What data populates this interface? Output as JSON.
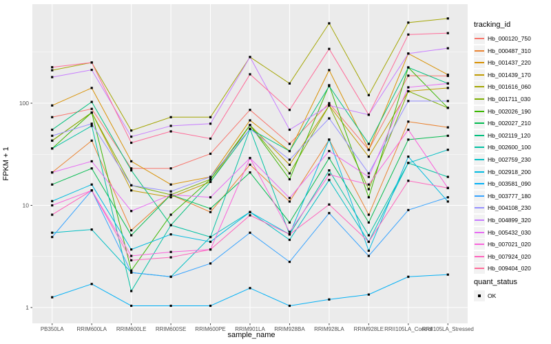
{
  "chart_data": {
    "type": "line",
    "title": "",
    "xlabel": "sample_name",
    "ylabel": "FPKM + 1",
    "y_scale": "log10",
    "y_ticks": [
      1,
      10,
      100
    ],
    "y_minor_ticks": [
      3.162,
      31.62,
      316.2
    ],
    "ylim": [
      0.7,
      930
    ],
    "grid": true,
    "panel_bg": "#EBEBEB",
    "grid_color": "#FFFFFF",
    "tick_color": "#333333",
    "point_color": "#000000",
    "point_shape": "square",
    "legend": {
      "title": "tracking_id",
      "position": "right"
    },
    "legend2": {
      "title": "quant_status",
      "items": [
        {
          "label": "OK",
          "marker": "black-square"
        }
      ]
    },
    "categories": [
      "PB350LA",
      "RRIM600LA",
      "RRIM600LE",
      "RRIM600SE",
      "RRIM600PE",
      "RRIM901LA",
      "RRIM928BA",
      "RRIM928LA",
      "RRIM928LE",
      "RRII105LA_Control",
      "RRII105LA_Stressed"
    ],
    "series": [
      {
        "name": "Hb_000120_750",
        "color": "#F8766D",
        "values": [
          73,
          88,
          23,
          23,
          32,
          86,
          40,
          100,
          35,
          186,
          185
        ]
      },
      {
        "name": "Hb_000487_310",
        "color": "#EA8331",
        "values": [
          21,
          43,
          5.7,
          12.7,
          8.6,
          25,
          10.9,
          44,
          8.1,
          66,
          58
        ]
      },
      {
        "name": "Hb_001437_220",
        "color": "#D89000",
        "values": [
          95,
          141,
          27,
          16,
          19,
          68,
          34,
          211,
          35,
          306,
          190
        ]
      },
      {
        "name": "Hb_001439_170",
        "color": "#C09B00",
        "values": [
          43,
          81,
          14,
          12,
          17,
          61,
          25,
          95,
          30,
          131,
          141
        ]
      },
      {
        "name": "Hb_001616_060",
        "color": "#A3A500",
        "values": [
          210,
          250,
          54,
          73,
          73,
          283,
          156,
          605,
          120,
          615,
          675
        ]
      },
      {
        "name": "Hb_001711_030",
        "color": "#7CAE00",
        "values": [
          43,
          81,
          15.7,
          12.7,
          18,
          61,
          20.6,
          95,
          14.4,
          131,
          90
        ]
      },
      {
        "name": "Hb_002026_190",
        "color": "#39B600",
        "values": [
          36,
          81,
          2.3,
          8.1,
          18,
          61,
          18,
          150,
          12,
          224,
          90
        ]
      },
      {
        "name": "Hb_002027_210",
        "color": "#00BB4E",
        "values": [
          16,
          23,
          5.1,
          12.7,
          9.3,
          21,
          6.8,
          29,
          6.8,
          44,
          48
        ]
      },
      {
        "name": "Hb_002119_120",
        "color": "#00BF7D",
        "values": [
          55,
          103,
          22,
          6.4,
          17,
          56,
          34,
          147,
          40,
          224,
          156
        ]
      },
      {
        "name": "Hb_002600_100",
        "color": "#00C1A3",
        "values": [
          36,
          60,
          1.45,
          6.4,
          4.9,
          56,
          5.2,
          22,
          5.1,
          26,
          19
        ]
      },
      {
        "name": "Hb_002759_230",
        "color": "#00BFC4",
        "values": [
          5.4,
          5.8,
          2.2,
          2.0,
          4.9,
          8.6,
          4.6,
          17.7,
          4.4,
          26,
          35
        ]
      },
      {
        "name": "Hb_002918_200",
        "color": "#00BAE0",
        "values": [
          11,
          16,
          3.7,
          5.2,
          4.4,
          8.6,
          5.2,
          44,
          3.6,
          30,
          10.9
        ]
      },
      {
        "name": "Hb_003581_090",
        "color": "#00B0F6",
        "values": [
          1.26,
          1.7,
          1.04,
          1.04,
          1.04,
          1.55,
          1.04,
          1.2,
          1.34,
          2.0,
          2.1
        ]
      },
      {
        "name": "Hb_003777_180",
        "color": "#35A2FF",
        "values": [
          4.9,
          14,
          2.2,
          2.0,
          2.7,
          5.4,
          2.8,
          8.4,
          3.2,
          9.0,
          12
        ]
      },
      {
        "name": "Hb_004108_230",
        "color": "#9590FF",
        "values": [
          48,
          63,
          15.7,
          13.7,
          19,
          56,
          28,
          71,
          20.6,
          105,
          105
        ]
      },
      {
        "name": "Hb_004899_320",
        "color": "#C77CFF",
        "values": [
          180,
          212,
          47,
          60,
          63,
          283,
          55,
          95,
          77,
          306,
          345
        ]
      },
      {
        "name": "Hb_005432_030",
        "color": "#E76BF3",
        "values": [
          21,
          27,
          8.8,
          12.7,
          12,
          29,
          11.8,
          34,
          19,
          143,
          156
        ]
      },
      {
        "name": "Hb_007021_020",
        "color": "#FA62DB",
        "values": [
          10,
          14,
          3.2,
          3.5,
          3.7,
          29,
          5.5,
          20,
          16,
          55,
          14.8
        ]
      },
      {
        "name": "Hb_007924_020",
        "color": "#FF62BC",
        "values": [
          8.1,
          14,
          2.9,
          3.1,
          3.7,
          8.0,
          5.2,
          10.2,
          4.4,
          17.4,
          14.8
        ]
      },
      {
        "name": "Hb_009404_020",
        "color": "#FF6A98",
        "values": [
          225,
          250,
          41,
          53,
          45,
          192,
          86,
          340,
          77,
          470,
          485
        ]
      }
    ]
  }
}
